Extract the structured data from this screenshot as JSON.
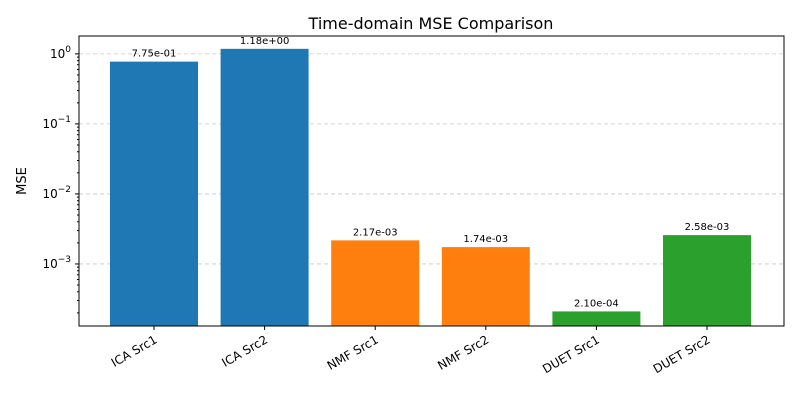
{
  "chart_data": {
    "type": "bar",
    "title": "Time-domain MSE Comparison",
    "ylabel": "MSE",
    "xlabel": "",
    "yscale": "log",
    "ylim": [
      0.00013,
      1.8
    ],
    "grid": true,
    "categories": [
      "ICA Src1",
      "ICA Src2",
      "NMF Src1",
      "NMF Src2",
      "DUET Src1",
      "DUET Src2"
    ],
    "values": [
      0.775,
      1.18,
      0.00217,
      0.00174,
      0.00021,
      0.00258
    ],
    "value_labels": [
      "7.75e-01",
      "1.18e+00",
      "2.17e-03",
      "1.74e-03",
      "2.10e-04",
      "2.58e-03"
    ],
    "colors": [
      "#1f77b4",
      "#1f77b4",
      "#ff7f0e",
      "#ff7f0e",
      "#2ca02c",
      "#2ca02c"
    ],
    "yticks": [
      {
        "value": 1,
        "base": "10",
        "exp": "0"
      },
      {
        "value": 0.1,
        "base": "10",
        "exp": "−1"
      },
      {
        "value": 0.01,
        "base": "10",
        "exp": "−2"
      },
      {
        "value": 0.001,
        "base": "10",
        "exp": "−3"
      }
    ]
  }
}
